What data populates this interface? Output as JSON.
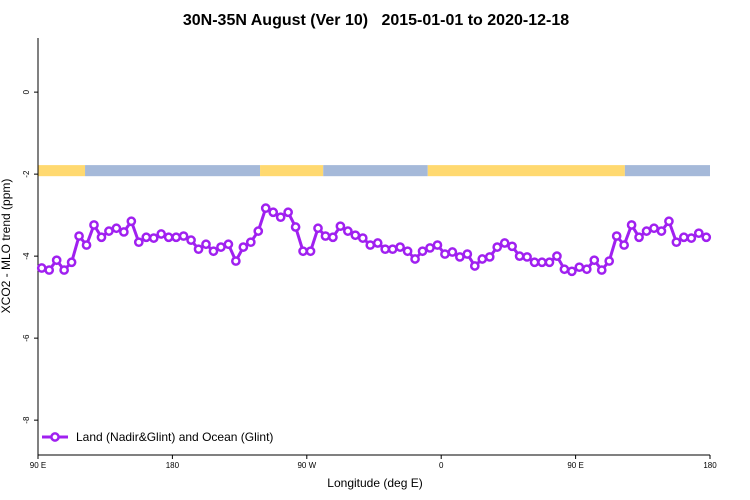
{
  "chart_data": {
    "type": "line",
    "title": "30N-35N August (Ver 10)   2015-01-01 to 2020-12-18",
    "x_label": "Longitude (deg E)",
    "y_label": "XCO2 - MLO trend (ppm)",
    "xlim": [
      90,
      540
    ],
    "ylim": [
      -8.85,
      1.32
    ],
    "xticks": [
      {
        "value": 90,
        "label": "90 E"
      },
      180,
      {
        "value": 270,
        "label": "90 W"
      },
      {
        "value": 360,
        "label": "0"
      },
      {
        "value": 450,
        "label": "90 E"
      },
      {
        "value": 540,
        "label": "180"
      }
    ],
    "yticks": [
      -8,
      -6,
      -4,
      -2,
      0
    ],
    "legend": "bottom-left",
    "x": [
      92.5,
      97.5,
      102.5,
      107.5,
      112.5,
      117.5,
      122.5,
      127.5,
      132.5,
      137.5,
      142.5,
      147.5,
      152.5,
      157.5,
      162.5,
      167.5,
      172.5,
      177.5,
      182.5,
      187.5,
      192.5,
      197.5,
      202.5,
      207.5,
      212.5,
      217.5,
      222.5,
      227.5,
      232.5,
      237.5,
      242.5,
      247.5,
      252.5,
      257.5,
      262.5,
      267.5,
      272.5,
      277.5,
      282.5,
      287.5,
      292.5,
      297.5,
      302.5,
      307.5,
      312.5,
      317.5,
      322.5,
      327.5,
      332.5,
      337.5,
      342.5,
      347.5,
      352.5,
      357.5,
      362.5,
      367.5,
      372.5,
      377.5,
      382.5,
      387.5,
      392.5,
      397.5,
      402.5,
      407.5,
      412.5,
      417.5,
      422.5,
      427.5,
      432.5,
      437.5,
      442.5,
      447.5,
      452.5,
      457.5,
      462.5,
      467.5,
      472.5,
      477.5,
      482.5,
      487.5,
      492.5,
      497.5,
      502.5,
      507.5,
      512.5,
      517.5,
      522.5,
      527.5,
      532.5,
      537.5
    ],
    "series": [
      {
        "name": "Land (Nadir&Glint) and Ocean (Glint)",
        "color": "#a020f0",
        "values": [
          -4.29,
          -4.34,
          -4.1,
          -4.34,
          -4.15,
          -3.51,
          -3.73,
          -3.24,
          -3.54,
          -3.39,
          -3.32,
          -3.41,
          -3.15,
          -3.66,
          -3.54,
          -3.56,
          -3.46,
          -3.54,
          -3.54,
          -3.51,
          -3.61,
          -3.83,
          -3.71,
          -3.88,
          -3.78,
          -3.71,
          -4.12,
          -3.78,
          -3.66,
          -3.39,
          -2.83,
          -2.93,
          -3.05,
          -2.93,
          -3.29,
          -3.88,
          -3.88,
          -3.32,
          -3.51,
          -3.54,
          -3.27,
          -3.39,
          -3.49,
          -3.56,
          -3.73,
          -3.68,
          -3.83,
          -3.83,
          -3.78,
          -3.88,
          -4.07,
          -3.88,
          -3.8,
          -3.73,
          -3.95,
          -3.9,
          -4.02,
          -3.95,
          -4.24,
          -4.07,
          -4.02,
          -3.78,
          -3.68,
          -3.76,
          -4.0,
          -4.02,
          -4.15,
          -4.15,
          -4.15,
          -4.0,
          -4.32,
          -4.37,
          -4.27,
          -4.32,
          -4.1,
          -4.34,
          -4.12,
          -3.51,
          -3.73,
          -3.24,
          -3.54,
          -3.39,
          -3.32,
          -3.39,
          -3.15,
          -3.66,
          -3.54,
          -3.56,
          -3.44,
          -3.54
        ]
      }
    ],
    "surface_strip": {
      "ylim": [
        -2.05,
        -1.78
      ],
      "segments": [
        {
          "start": 90,
          "end": 121.5,
          "color": "#ffd970"
        },
        {
          "start": 121.5,
          "end": 238.7,
          "color": "#a5b9d9"
        },
        {
          "start": 238.7,
          "end": 281,
          "color": "#ffd970"
        },
        {
          "start": 281,
          "end": 351,
          "color": "#a5b9d9"
        },
        {
          "start": 351,
          "end": 483,
          "color": "#ffd970"
        },
        {
          "start": 483,
          "end": 540,
          "color": "#a5b9d9"
        }
      ]
    }
  }
}
